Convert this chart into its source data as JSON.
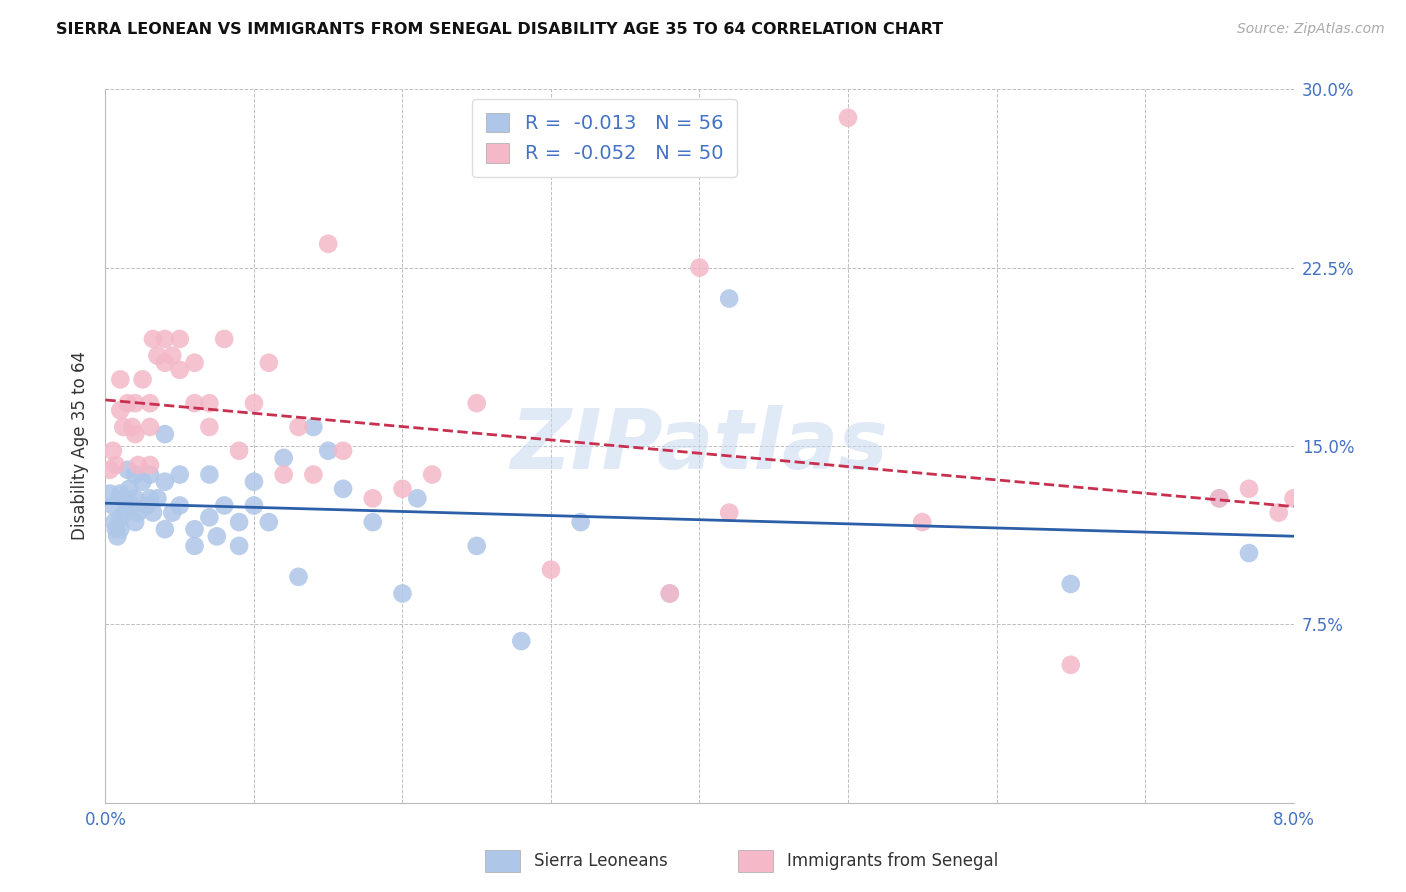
{
  "title": "SIERRA LEONEAN VS IMMIGRANTS FROM SENEGAL DISABILITY AGE 35 TO 64 CORRELATION CHART",
  "source": "Source: ZipAtlas.com",
  "ylabel": "Disability Age 35 to 64",
  "xlim": [
    0,
    0.08
  ],
  "ylim": [
    0,
    0.3
  ],
  "xticks": [
    0.0,
    0.01,
    0.02,
    0.03,
    0.04,
    0.05,
    0.06,
    0.07,
    0.08
  ],
  "xticklabels": [
    "0.0%",
    "",
    "",
    "",
    "",
    "",
    "",
    "",
    "8.0%"
  ],
  "yticks": [
    0.0,
    0.075,
    0.15,
    0.225,
    0.3
  ],
  "yticklabels_right": [
    "",
    "7.5%",
    "15.0%",
    "22.5%",
    "30.0%"
  ],
  "legend_label1": "R =  -0.013   N = 56",
  "legend_label2": "R =  -0.052   N = 50",
  "legend_label_sl": "Sierra Leoneans",
  "legend_label_sg": "Immigrants from Senegal",
  "color_sl": "#aec6e8",
  "color_sg": "#f4b8c8",
  "color_sl_line": "#2c5fa8",
  "color_sg_line": "#c83050",
  "watermark_text": "ZIPatlas",
  "sl_x": [
    0.0003,
    0.0005,
    0.0006,
    0.0007,
    0.0008,
    0.001,
    0.001,
    0.001,
    0.0012,
    0.0013,
    0.0015,
    0.0016,
    0.0018,
    0.002,
    0.002,
    0.002,
    0.0022,
    0.0025,
    0.0028,
    0.003,
    0.003,
    0.0032,
    0.0035,
    0.004,
    0.004,
    0.004,
    0.0045,
    0.005,
    0.005,
    0.006,
    0.006,
    0.007,
    0.007,
    0.0075,
    0.008,
    0.009,
    0.009,
    0.01,
    0.01,
    0.011,
    0.012,
    0.013,
    0.014,
    0.015,
    0.016,
    0.018,
    0.02,
    0.021,
    0.025,
    0.028,
    0.032,
    0.038,
    0.042,
    0.065,
    0.075,
    0.077
  ],
  "sl_y": [
    0.13,
    0.125,
    0.118,
    0.115,
    0.112,
    0.13,
    0.12,
    0.115,
    0.128,
    0.122,
    0.14,
    0.132,
    0.125,
    0.138,
    0.128,
    0.118,
    0.122,
    0.135,
    0.125,
    0.138,
    0.128,
    0.122,
    0.128,
    0.155,
    0.135,
    0.115,
    0.122,
    0.138,
    0.125,
    0.115,
    0.108,
    0.138,
    0.12,
    0.112,
    0.125,
    0.118,
    0.108,
    0.135,
    0.125,
    0.118,
    0.145,
    0.095,
    0.158,
    0.148,
    0.132,
    0.118,
    0.088,
    0.128,
    0.108,
    0.068,
    0.118,
    0.088,
    0.212,
    0.092,
    0.128,
    0.105
  ],
  "sg_x": [
    0.0003,
    0.0005,
    0.0007,
    0.001,
    0.001,
    0.0012,
    0.0015,
    0.0018,
    0.002,
    0.002,
    0.0022,
    0.0025,
    0.003,
    0.003,
    0.003,
    0.0032,
    0.0035,
    0.004,
    0.004,
    0.0045,
    0.005,
    0.005,
    0.006,
    0.006,
    0.007,
    0.007,
    0.008,
    0.009,
    0.01,
    0.011,
    0.012,
    0.013,
    0.014,
    0.015,
    0.016,
    0.018,
    0.02,
    0.022,
    0.025,
    0.03,
    0.038,
    0.04,
    0.042,
    0.05,
    0.055,
    0.065,
    0.075,
    0.077,
    0.079,
    0.08
  ],
  "sg_y": [
    0.14,
    0.148,
    0.142,
    0.178,
    0.165,
    0.158,
    0.168,
    0.158,
    0.168,
    0.155,
    0.142,
    0.178,
    0.168,
    0.158,
    0.142,
    0.195,
    0.188,
    0.195,
    0.185,
    0.188,
    0.195,
    0.182,
    0.185,
    0.168,
    0.168,
    0.158,
    0.195,
    0.148,
    0.168,
    0.185,
    0.138,
    0.158,
    0.138,
    0.235,
    0.148,
    0.128,
    0.132,
    0.138,
    0.168,
    0.098,
    0.088,
    0.225,
    0.122,
    0.288,
    0.118,
    0.058,
    0.128,
    0.132,
    0.122,
    0.128
  ]
}
